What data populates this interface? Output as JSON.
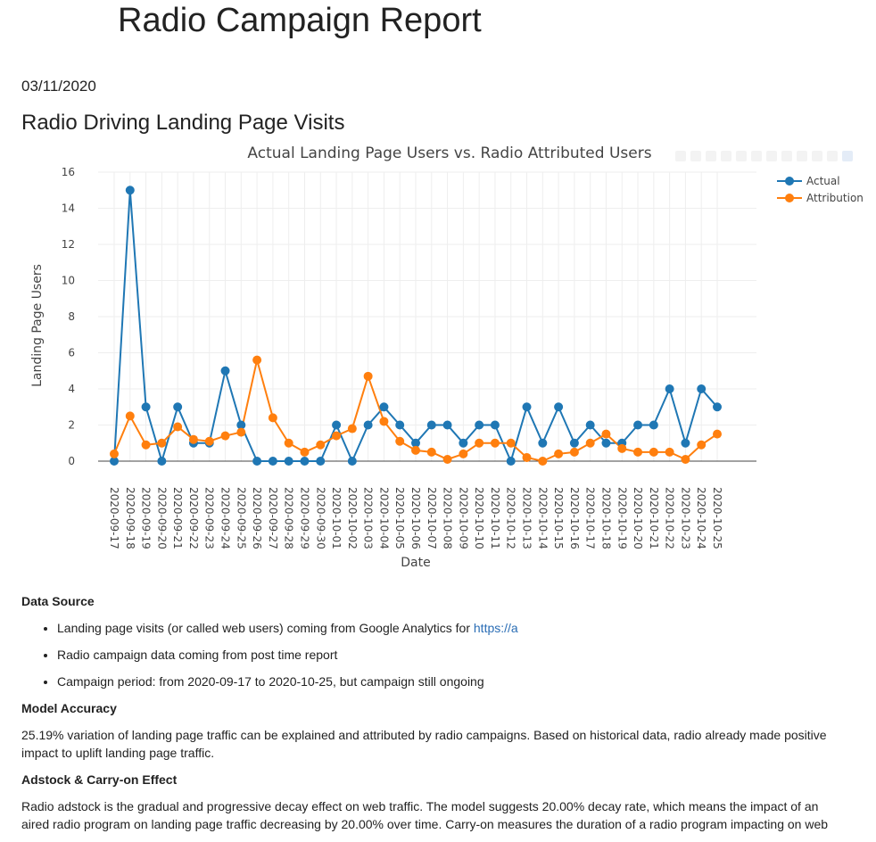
{
  "header": {
    "title": "Radio Campaign Report",
    "date": "03/11/2020"
  },
  "section": {
    "title": "Radio Driving Landing Page Visits"
  },
  "chart_data": {
    "type": "line",
    "title": "Actual Landing Page Users vs. Radio Attributed Users",
    "xlabel": "Date",
    "ylabel": "Landing Page Users",
    "ylim": [
      0,
      16
    ],
    "yticks": [
      0,
      2,
      4,
      6,
      8,
      10,
      12,
      14,
      16
    ],
    "grid": true,
    "legend_position": "top-right",
    "x": [
      "2020-09-17",
      "2020-09-18",
      "2020-09-19",
      "2020-09-20",
      "2020-09-21",
      "2020-09-22",
      "2020-09-23",
      "2020-09-24",
      "2020-09-25",
      "2020-09-26",
      "2020-09-27",
      "2020-09-28",
      "2020-09-29",
      "2020-09-30",
      "2020-10-01",
      "2020-10-02",
      "2020-10-03",
      "2020-10-04",
      "2020-10-05",
      "2020-10-06",
      "2020-10-07",
      "2020-10-08",
      "2020-10-09",
      "2020-10-10",
      "2020-10-11",
      "2020-10-12",
      "2020-10-13",
      "2020-10-14",
      "2020-10-15",
      "2020-10-16",
      "2020-10-17",
      "2020-10-18",
      "2020-10-19",
      "2020-10-20",
      "2020-10-21",
      "2020-10-22",
      "2020-10-23",
      "2020-10-24",
      "2020-10-25"
    ],
    "series": [
      {
        "name": "Actual",
        "color": "#1f77b4",
        "values": [
          0,
          15,
          3,
          0,
          3,
          1,
          1,
          5,
          2,
          0,
          0,
          0,
          0,
          0,
          2,
          0,
          2,
          3,
          2,
          1,
          2,
          2,
          1,
          2,
          2,
          0,
          3,
          1,
          3,
          1,
          2,
          1,
          1,
          2,
          2,
          4,
          1,
          4,
          3
        ]
      },
      {
        "name": "Attribution",
        "color": "#ff7f0e",
        "values": [
          0.4,
          2.5,
          0.9,
          1.0,
          1.9,
          1.2,
          1.1,
          1.4,
          1.6,
          5.6,
          2.4,
          1.0,
          0.5,
          0.9,
          1.4,
          1.8,
          4.7,
          2.2,
          1.1,
          0.6,
          0.5,
          0.1,
          0.4,
          1.0,
          1.0,
          1.0,
          0.2,
          0.0,
          0.4,
          0.5,
          1.0,
          1.5,
          0.7,
          0.5,
          0.5,
          0.5,
          0.1,
          0.9,
          1.5
        ]
      }
    ]
  },
  "sections": {
    "data_source": {
      "heading": "Data Source",
      "bullet1_prefix": "Landing page visits (or called web users) coming from Google Analytics for ",
      "bullet1_link": "https://a",
      "bullet2": "Radio campaign data coming from post time report",
      "bullet3": "Campaign period: from 2020-09-17 to 2020-10-25, but campaign still ongoing"
    },
    "model_accuracy": {
      "heading": "Model Accuracy",
      "text": "25.19% variation of landing page traffic can be explained and attributed by radio campaigns. Based on historical data, radio already made positive impact to uplift landing page traffic."
    },
    "adstock": {
      "heading": "Adstock & Carry-on Effect",
      "text": "Radio adstock is the gradual and progressive decay effect on web traffic. The model suggests 20.00% decay rate, which means the impact of an aired radio program on landing page traffic decreasing by 20.00% over time. Carry-on measures the duration of a radio program impacting on web"
    }
  }
}
